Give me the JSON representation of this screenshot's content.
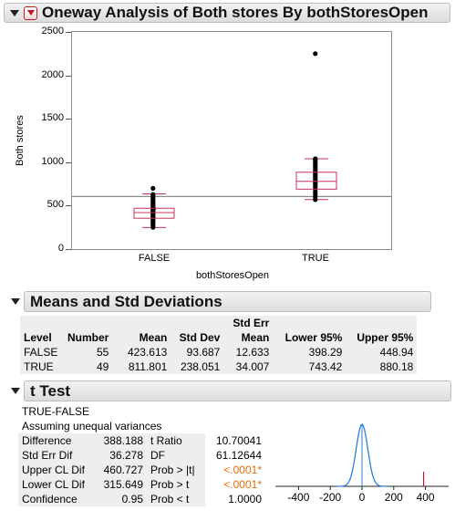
{
  "title": "Oneway Analysis of Both stores By bothStoresOpen",
  "plot": {
    "ylabel": "Both stores",
    "xlabel": "bothStoresOpen",
    "yticks": [
      "0",
      "500",
      "1000",
      "1500",
      "2000",
      "2500"
    ],
    "xcats": [
      "FALSE",
      "TRUE"
    ],
    "colors": {
      "box": "#c8335a",
      "points": "#000000",
      "grand_mean_line": "#8a8a8a"
    }
  },
  "chart_data": [
    {
      "type": "box",
      "xlabel": "bothStoresOpen",
      "ylabel": "Both stores",
      "ylim": [
        0,
        2500
      ],
      "categories": [
        "FALSE",
        "TRUE"
      ],
      "grand_mean": 605,
      "boxes": [
        {
          "category": "FALSE",
          "min": 248,
          "q1": 355,
          "median": 420,
          "q3": 470,
          "max": 635,
          "points": [
            250,
            270,
            290,
            300,
            320,
            330,
            340,
            360,
            370,
            380,
            395,
            405,
            415,
            425,
            435,
            445,
            455,
            468,
            480,
            495,
            510,
            520,
            535,
            550,
            565,
            580,
            600,
            615,
            630,
            700
          ]
        },
        {
          "category": "TRUE",
          "min": 570,
          "q1": 690,
          "median": 780,
          "q3": 885,
          "max": 1040,
          "points": [
            570,
            600,
            630,
            660,
            690,
            715,
            740,
            760,
            780,
            800,
            820,
            840,
            860,
            880,
            900,
            920,
            945,
            970,
            995,
            1020,
            1040,
            2250
          ]
        }
      ]
    },
    {
      "type": "line",
      "description_free": true,
      "xlim": [
        -500,
        500
      ],
      "xticks": [
        "-400",
        "-200",
        "0",
        "200",
        "400"
      ],
      "t_distribution_center": 0,
      "estimate_marker": 388.188
    }
  ],
  "means": {
    "title": "Means and Std Deviations",
    "headers_top": [
      "",
      "",
      "",
      "",
      "Std Err",
      "",
      ""
    ],
    "headers": [
      "Level",
      "Number",
      "Mean",
      "Std Dev",
      "Mean",
      "Lower 95%",
      "Upper 95%"
    ],
    "rows": [
      [
        "FALSE",
        "55",
        "423.613",
        "93.687",
        "12.633",
        "398.29",
        "448.94"
      ],
      [
        "TRUE",
        "49",
        "811.801",
        "238.051",
        "34.007",
        "743.42",
        "880.18"
      ]
    ]
  },
  "ttest": {
    "title": "t Test",
    "line1": "TRUE-FALSE",
    "line2": "Assuming unequal variances",
    "rows": [
      {
        "label": "Difference",
        "value": "388.188",
        "stat": "t Ratio",
        "statval": "10.70041",
        "orange": false
      },
      {
        "label": "Std Err Dif",
        "value": "36.278",
        "stat": "DF",
        "statval": "61.12644",
        "orange": false
      },
      {
        "label": "Upper CL Dif",
        "value": "460.727",
        "stat": "Prob > |t|",
        "statval": "<.0001*",
        "orange": true
      },
      {
        "label": "Lower CL Dif",
        "value": "315.649",
        "stat": "Prob > t",
        "statval": "<.0001*",
        "orange": true
      },
      {
        "label": "Confidence",
        "value": "0.95",
        "stat": "Prob < t",
        "statval": "1.0000",
        "orange": false
      }
    ]
  }
}
